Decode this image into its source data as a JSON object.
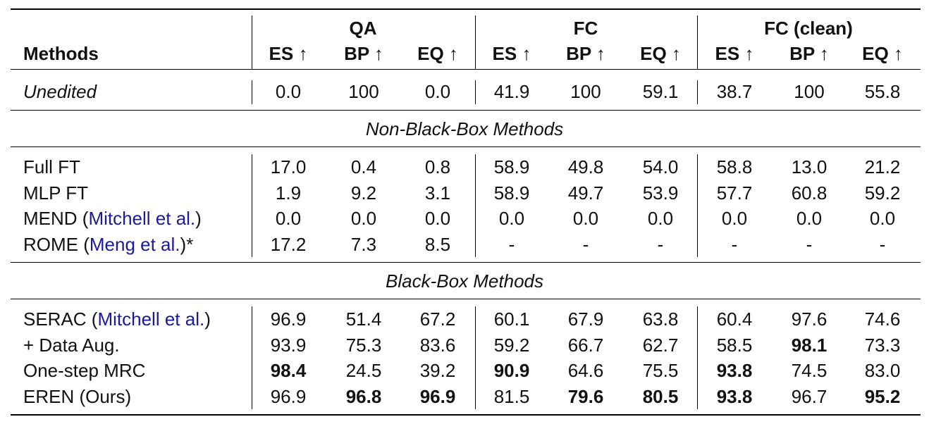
{
  "header": {
    "methods_label": "Methods",
    "groups": [
      "QA",
      "FC",
      "FC (clean)"
    ],
    "metrics": [
      "ES ↑",
      "BP ↑",
      "EQ ↑",
      "ES ↑",
      "BP ↑",
      "EQ ↑",
      "ES ↑",
      "BP ↑",
      "EQ ↑"
    ]
  },
  "unedited": {
    "label": "Unedited",
    "values": [
      "0.0",
      "100",
      "0.0",
      "41.9",
      "100",
      "59.1",
      "38.7",
      "100",
      "55.8"
    ]
  },
  "sections": {
    "non_black_box": "Non-Black-Box Methods",
    "black_box": "Black-Box Methods"
  },
  "non_black_box_rows": [
    {
      "label": "Full FT",
      "cite": "",
      "suffix": "",
      "values": [
        "17.0",
        "0.4",
        "0.8",
        "58.9",
        "49.8",
        "54.0",
        "58.8",
        "13.0",
        "21.2"
      ]
    },
    {
      "label": "MLP FT",
      "cite": "",
      "suffix": "",
      "values": [
        "1.9",
        "9.2",
        "3.1",
        "58.9",
        "49.7",
        "53.9",
        "57.7",
        "60.8",
        "59.2"
      ]
    },
    {
      "label": "MEND (",
      "cite": "Mitchell et al.",
      "suffix": ")",
      "values": [
        "0.0",
        "0.0",
        "0.0",
        "0.0",
        "0.0",
        "0.0",
        "0.0",
        "0.0",
        "0.0"
      ]
    },
    {
      "label": "ROME (",
      "cite": "Meng et al.",
      "suffix": ")*",
      "values": [
        "17.2",
        "7.3",
        "8.5",
        "-",
        "-",
        "-",
        "-",
        "-",
        "-"
      ]
    }
  ],
  "black_box_rows": [
    {
      "label": "SERAC (",
      "cite": "Mitchell et al.",
      "suffix": ")",
      "values": [
        "96.9",
        "51.4",
        "67.2",
        "60.1",
        "67.9",
        "63.8",
        "60.4",
        "97.6",
        "74.6"
      ],
      "bold": []
    },
    {
      "label": "+ Data Aug.",
      "cite": "",
      "suffix": "",
      "values": [
        "93.9",
        "75.3",
        "83.6",
        "59.2",
        "66.7",
        "62.7",
        "58.5",
        "98.1",
        "73.3"
      ],
      "bold": [
        7
      ]
    },
    {
      "label": "One-step MRC",
      "cite": "",
      "suffix": "",
      "values": [
        "98.4",
        "24.5",
        "39.2",
        "90.9",
        "64.6",
        "75.5",
        "93.8",
        "74.5",
        "83.0"
      ],
      "bold": [
        0,
        3,
        6
      ]
    },
    {
      "label": "EREN (Ours)",
      "cite": "",
      "suffix": "",
      "values": [
        "96.9",
        "96.8",
        "96.9",
        "81.5",
        "79.6",
        "80.5",
        "93.8",
        "96.7",
        "95.2"
      ],
      "bold": [
        1,
        2,
        4,
        5,
        6,
        8
      ]
    }
  ]
}
